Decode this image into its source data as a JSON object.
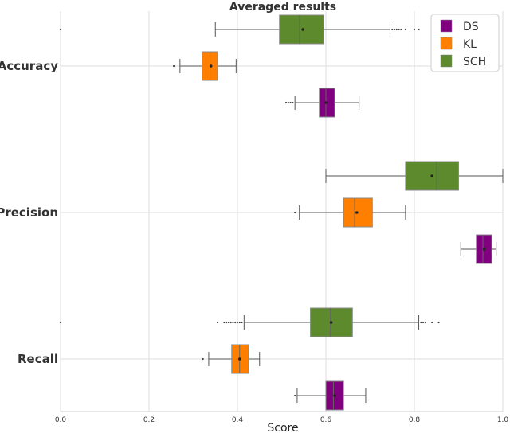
{
  "chart_data": {
    "type": "boxplot",
    "orientation": "horizontal",
    "title": "Averaged results",
    "xlabel": "Score",
    "ylabel": "",
    "xlim": [
      0.0,
      1.0
    ],
    "x_ticks": [
      "0.0",
      "0.2",
      "0.4",
      "0.6",
      "0.8",
      "1.0"
    ],
    "grid": true,
    "legend_position": "top-right",
    "categories": [
      "Accuracy",
      "Precision",
      "Recall"
    ],
    "series": [
      {
        "name": "SCH",
        "color": "#5c8a2d",
        "boxes": [
          {
            "category": "Accuracy",
            "whisker_low": 0.35,
            "q1": 0.495,
            "median": 0.54,
            "q3": 0.595,
            "whisker_high": 0.745,
            "mean": 0.548,
            "outliers": [
              0.0,
              0.75,
              0.755,
              0.76,
              0.765,
              0.77,
              0.78,
              0.8,
              0.81
            ]
          },
          {
            "category": "Precision",
            "whisker_low": 0.6,
            "q1": 0.78,
            "median": 0.85,
            "q3": 0.9,
            "whisker_high": 1.0,
            "mean": 0.84,
            "outliers": []
          },
          {
            "category": "Recall",
            "whisker_low": 0.415,
            "q1": 0.565,
            "median": 0.61,
            "q3": 0.66,
            "whisker_high": 0.81,
            "mean": 0.612,
            "outliers": [
              0.0,
              0.355,
              0.37,
              0.375,
              0.38,
              0.385,
              0.39,
              0.395,
              0.4,
              0.405,
              0.41,
              0.815,
              0.82,
              0.825,
              0.84,
              0.855
            ]
          }
        ]
      },
      {
        "name": "KL",
        "color": "#ff8000",
        "boxes": [
          {
            "category": "Accuracy",
            "whisker_low": 0.27,
            "q1": 0.32,
            "median": 0.338,
            "q3": 0.355,
            "whisker_high": 0.397,
            "mean": 0.34,
            "outliers": [
              0.256
            ]
          },
          {
            "category": "Precision",
            "whisker_low": 0.54,
            "q1": 0.64,
            "median": 0.665,
            "q3": 0.705,
            "whisker_high": 0.78,
            "mean": 0.67,
            "outliers": [
              0.53
            ]
          },
          {
            "category": "Recall",
            "whisker_low": 0.335,
            "q1": 0.387,
            "median": 0.405,
            "q3": 0.425,
            "whisker_high": 0.45,
            "mean": 0.405,
            "outliers": [
              0.322
            ]
          }
        ]
      },
      {
        "name": "DS",
        "color": "#800080",
        "boxes": [
          {
            "category": "Accuracy",
            "whisker_low": 0.53,
            "q1": 0.585,
            "median": 0.6,
            "q3": 0.62,
            "whisker_high": 0.675,
            "mean": 0.6,
            "outliers": [
              0.51,
              0.515,
              0.52,
              0.525
            ]
          },
          {
            "category": "Precision",
            "whisker_low": 0.905,
            "q1": 0.94,
            "median": 0.955,
            "q3": 0.975,
            "whisker_high": 0.985,
            "mean": 0.958,
            "outliers": []
          },
          {
            "category": "Recall",
            "whisker_low": 0.535,
            "q1": 0.6,
            "median": 0.617,
            "q3": 0.64,
            "whisker_high": 0.69,
            "mean": 0.62,
            "outliers": [
              0.53
            ]
          }
        ]
      }
    ],
    "legend_order": [
      "DS",
      "KL",
      "SCH"
    ]
  }
}
